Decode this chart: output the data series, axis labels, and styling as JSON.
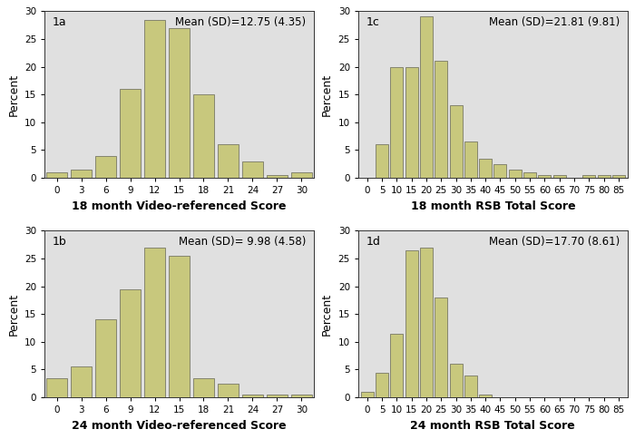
{
  "panel_1a": {
    "label": "1a",
    "mean_sd": "Mean (SD)=12.75 (4.35)",
    "xlabel": "18 month Video-referenced Score",
    "xticks": [
      0,
      3,
      6,
      9,
      12,
      15,
      18,
      21,
      24,
      27,
      30
    ],
    "bar_positions": [
      0,
      3,
      6,
      9,
      12,
      15,
      18,
      21,
      24,
      27,
      30
    ],
    "bar_heights": [
      1.0,
      1.5,
      4.0,
      16.0,
      28.5,
      27.0,
      15.0,
      6.0,
      3.0,
      0.5,
      1.0
    ],
    "bar_width": 2.5,
    "xlim": [
      -1.5,
      31.5
    ],
    "ylim": [
      0,
      30
    ],
    "yticks": [
      0,
      5,
      10,
      15,
      20,
      25,
      30
    ]
  },
  "panel_1b": {
    "label": "1b",
    "mean_sd": "Mean (SD)= 9.98 (4.58)",
    "xlabel": "24 month Video-referenced Score",
    "xticks": [
      0,
      3,
      6,
      9,
      12,
      15,
      18,
      21,
      24,
      27,
      30
    ],
    "bar_positions": [
      0,
      3,
      6,
      9,
      12,
      15,
      18,
      21,
      24,
      27,
      30
    ],
    "bar_heights": [
      3.5,
      5.5,
      14.0,
      19.5,
      27.0,
      25.5,
      3.5,
      2.5,
      0.5,
      0.5,
      0.5
    ],
    "bar_width": 2.5,
    "xlim": [
      -1.5,
      31.5
    ],
    "ylim": [
      0,
      30
    ],
    "yticks": [
      0,
      5,
      10,
      15,
      20,
      25,
      30
    ]
  },
  "panel_1c": {
    "label": "1c",
    "mean_sd": "Mean (SD)=21.81 (9.81)",
    "xlabel": "18 month RSB Total Score",
    "xticks": [
      0,
      5,
      10,
      15,
      20,
      25,
      30,
      35,
      40,
      45,
      50,
      55,
      60,
      65,
      70,
      75,
      80,
      85
    ],
    "bar_positions": [
      0,
      5,
      10,
      15,
      20,
      25,
      30,
      35,
      40,
      45,
      50,
      55,
      60,
      65,
      70,
      75,
      80,
      85
    ],
    "bar_heights": [
      0.0,
      6.0,
      20.0,
      20.0,
      29.0,
      21.0,
      13.0,
      6.5,
      3.5,
      2.5,
      1.5,
      1.0,
      0.5,
      0.5,
      0.0,
      0.5,
      0.5,
      0.5
    ],
    "bar_width": 4.3,
    "xlim": [
      -3.0,
      88.0
    ],
    "ylim": [
      0,
      30
    ],
    "yticks": [
      0,
      5,
      10,
      15,
      20,
      25,
      30
    ]
  },
  "panel_1d": {
    "label": "1d",
    "mean_sd": "Mean (SD)=17.70 (8.61)",
    "xlabel": "24 month RSB Total Score",
    "xticks": [
      0,
      5,
      10,
      15,
      20,
      25,
      30,
      35,
      40,
      45,
      50,
      55,
      60,
      65,
      70,
      75,
      80,
      85
    ],
    "bar_positions": [
      0,
      5,
      10,
      15,
      20,
      25,
      30,
      35,
      40,
      45,
      50,
      55,
      60,
      65,
      70,
      75,
      80,
      85
    ],
    "bar_heights": [
      1.0,
      4.5,
      11.5,
      26.5,
      27.0,
      18.0,
      6.0,
      4.0,
      0.5,
      0.0,
      0.0,
      0.0,
      0.0,
      0.0,
      0.0,
      0.0,
      0.0,
      0.0
    ],
    "bar_width": 4.3,
    "xlim": [
      -3.0,
      88.0
    ],
    "ylim": [
      0,
      30
    ],
    "yticks": [
      0,
      5,
      10,
      15,
      20,
      25,
      30
    ]
  },
  "bar_color": "#c8c87d",
  "bar_edgecolor": "#666655",
  "background_color": "#e0e0e0",
  "figure_facecolor": "#ffffff",
  "ylabel": "Percent",
  "ylabel_fontsize": 9,
  "tick_fontsize": 7.5,
  "xlabel_fontsize": 9,
  "annotation_fontsize": 8.5,
  "panel_label_fontsize": 9,
  "xlabel_fontweight": "bold"
}
